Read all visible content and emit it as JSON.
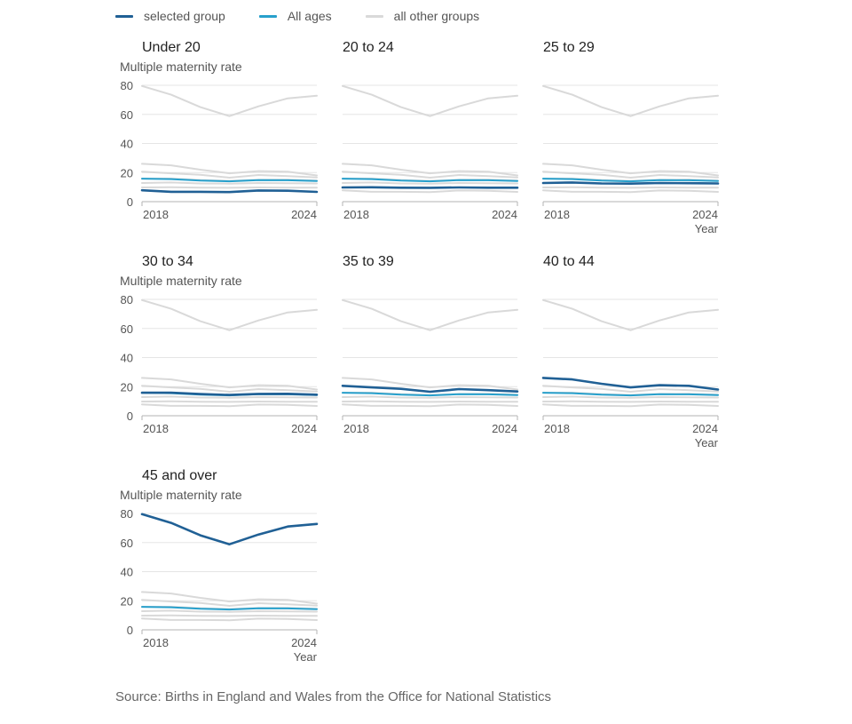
{
  "legend": [
    {
      "label": "selected group",
      "color": "#206095"
    },
    {
      "label": "All ages",
      "color": "#27a0cc"
    },
    {
      "label": "all other groups",
      "color": "#d9d9d9"
    }
  ],
  "source": "Source: Births in England and Wales from the Office for National Statistics",
  "chart_data": {
    "type": "line",
    "layout": "small multiples",
    "ylabel": "Multiple maternity rate",
    "xlabel": "Year",
    "x": [
      2018,
      2019,
      2020,
      2021,
      2022,
      2023,
      2024
    ],
    "x_ticks": [
      "2018",
      "2024"
    ],
    "ylim": [
      0,
      80
    ],
    "y_ticks": [
      0,
      20,
      40,
      60,
      80
    ],
    "grid": true,
    "legend_position": "top",
    "all_ages": {
      "name": "All ages",
      "values": [
        15.8,
        15.5,
        14.5,
        14.0,
        14.8,
        14.7,
        14.2
      ]
    },
    "panels": [
      {
        "title": "Under 20",
        "values": [
          7.8,
          6.8,
          6.8,
          6.6,
          7.7,
          7.5,
          6.7
        ]
      },
      {
        "title": "20 to 24",
        "values": [
          9.8,
          9.9,
          9.6,
          9.5,
          9.8,
          9.6,
          9.6
        ]
      },
      {
        "title": "25 to 29",
        "values": [
          12.8,
          13.2,
          12.5,
          12.4,
          12.8,
          12.7,
          12.5
        ]
      },
      {
        "title": "30 to 34",
        "values": [
          15.8,
          15.9,
          14.9,
          14.3,
          15.0,
          15.1,
          14.5
        ]
      },
      {
        "title": "35 to 39",
        "values": [
          20.6,
          19.5,
          18.5,
          16.5,
          18.3,
          17.6,
          16.7
        ]
      },
      {
        "title": "40 to 44",
        "values": [
          26.0,
          25.0,
          22.0,
          19.5,
          21.0,
          20.6,
          18.0
        ]
      },
      {
        "title": "45 and over",
        "values": [
          79.5,
          73.5,
          65.0,
          58.8,
          65.5,
          71.0,
          72.8
        ]
      }
    ]
  }
}
